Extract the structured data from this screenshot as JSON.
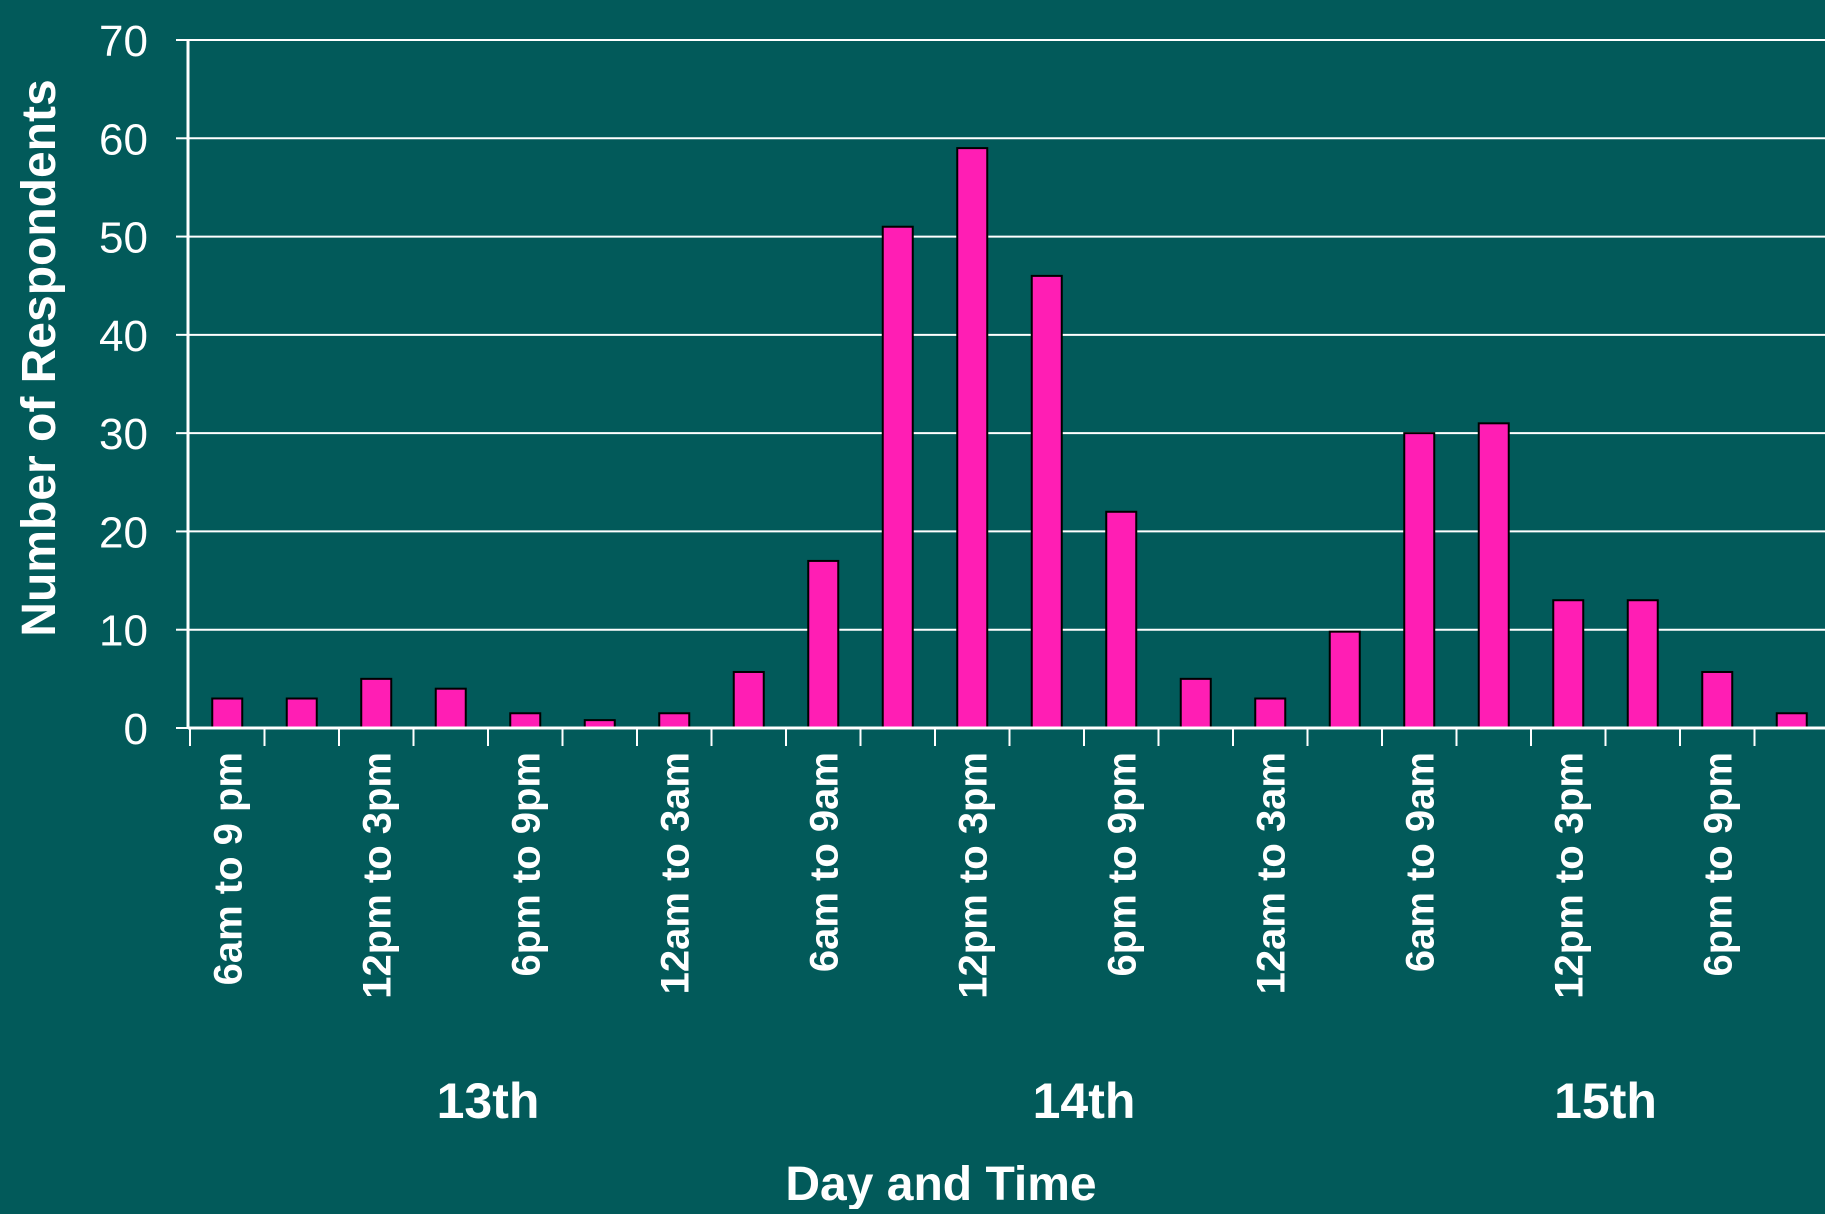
{
  "chart_data": {
    "type": "bar",
    "title": "",
    "ylabel": "Number of Respondents",
    "xlabel": "Day and Time",
    "ylim": [
      0,
      70
    ],
    "yticks": [
      0,
      10,
      20,
      30,
      40,
      50,
      60,
      70
    ],
    "grid": true,
    "legend": "none",
    "categories": [
      "6am to 9 pm",
      "",
      "12pm to 3pm",
      "",
      "6pm to 9pm",
      "",
      "12am to 3am",
      "",
      "6am to 9am",
      "",
      "12pm to 3pm",
      "",
      "6pm to 9pm",
      "",
      "12am to 3am",
      "",
      "6am to 9am",
      "",
      "12pm to 3pm",
      "",
      "6pm to 9pm",
      ""
    ],
    "values": [
      3,
      3,
      5,
      4,
      1.5,
      0.8,
      1.5,
      5.7,
      17,
      51,
      59,
      46,
      22,
      5,
      3,
      9.8,
      30,
      31,
      13,
      13,
      5.7,
      1.5
    ],
    "groups": [
      {
        "label": "13th",
        "start": 0,
        "end": 7
      },
      {
        "label": "14th",
        "start": 8,
        "end": 15
      },
      {
        "label": "15th",
        "start": 16,
        "end": 21
      }
    ],
    "colors": {
      "background": "#025a5a",
      "bar": "#ff1eb4",
      "bar_outline": "#000000",
      "grid": "#ffffff",
      "text": "#ffffff"
    }
  }
}
